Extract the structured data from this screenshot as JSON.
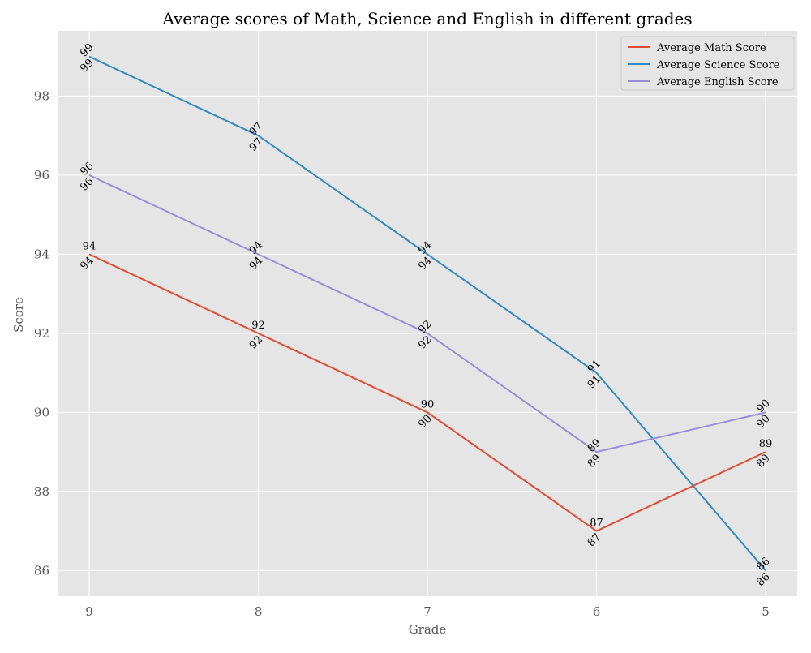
{
  "chart_data": {
    "type": "line",
    "title": "Average scores of Math, Science and English in different grades",
    "xlabel": "Grade",
    "ylabel": "Score",
    "categories": [
      "9",
      "8",
      "7",
      "6",
      "5"
    ],
    "ylim": [
      85.35,
      99.65
    ],
    "yticks": [
      86,
      88,
      90,
      92,
      94,
      96,
      98
    ],
    "grid": true,
    "legend_position": "top-right",
    "background": "#e5e5e5",
    "series": [
      {
        "name": "Average Math Score",
        "color": "#e24a33",
        "values": [
          94,
          92,
          90,
          87,
          89
        ]
      },
      {
        "name": "Average Science Score",
        "color": "#348abd",
        "values": [
          99,
          97,
          94,
          91,
          86
        ]
      },
      {
        "name": "Average English Score",
        "color": "#988ed5",
        "values": [
          96,
          94,
          92,
          89,
          90
        ]
      }
    ]
  }
}
